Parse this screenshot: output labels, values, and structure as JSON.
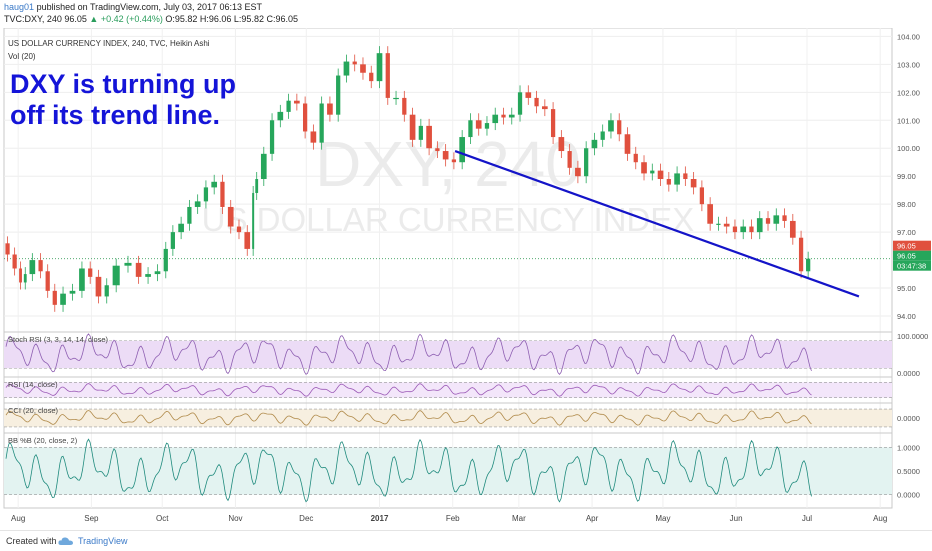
{
  "header": {
    "author": "haug01",
    "published": "published on TradingView.com, July 03, 2017 06:13 EST",
    "ticker_line_prefix": "TVC:DXY, 240  96.05",
    "change": "▲ +0.42 (+0.44%)",
    "ohlc": "O:95.82  H:96.06  L:95.82  C:96.05"
  },
  "chart_data": {
    "type": "line",
    "title": "US DOLLAR CURRENCY INDEX, 240, TVC, Heikin Ashi",
    "volume_label": "Vol (20)",
    "annotation": [
      "DXY is turning up",
      "off its trend line."
    ],
    "watermark": {
      "symbol": "DXY, 240",
      "name": "US DOLLAR CURRENCY INDEX"
    },
    "ylim": [
      93.5,
      104.3
    ],
    "y_ticks": [
      "104.00",
      "103.00",
      "102.00",
      "101.00",
      "100.00",
      "99.00",
      "98.00",
      "97.00",
      "95.00",
      "94.00"
    ],
    "x_ticks": [
      "Aug",
      "Sep",
      "Oct",
      "Nov",
      "Dec",
      "2017",
      "Feb",
      "Mar",
      "Apr",
      "May",
      "Jun",
      "Jul",
      "Aug"
    ],
    "price_series": {
      "name": "DXY",
      "x": [
        "2016-07-26",
        "2016-07-29",
        "2016-08-01",
        "2016-08-03",
        "2016-08-05",
        "2016-08-09",
        "2016-08-12",
        "2016-08-15",
        "2016-08-18",
        "2016-08-22",
        "2016-08-26",
        "2016-08-30",
        "2016-09-02",
        "2016-09-06",
        "2016-09-09",
        "2016-09-14",
        "2016-09-19",
        "2016-09-23",
        "2016-09-27",
        "2016-10-01",
        "2016-10-04",
        "2016-10-07",
        "2016-10-11",
        "2016-10-14",
        "2016-10-18",
        "2016-10-21",
        "2016-10-25",
        "2016-10-28",
        "2016-11-01",
        "2016-11-04",
        "2016-11-08",
        "2016-11-09",
        "2016-11-11",
        "2016-11-15",
        "2016-11-18",
        "2016-11-22",
        "2016-11-25",
        "2016-11-29",
        "2016-12-02",
        "2016-12-06",
        "2016-12-09",
        "2016-12-13",
        "2016-12-16",
        "2016-12-20",
        "2016-12-23",
        "2016-12-27",
        "2016-12-30",
        "2017-01-03",
        "2017-01-06",
        "2017-01-10",
        "2017-01-13",
        "2017-01-17",
        "2017-01-20",
        "2017-01-24",
        "2017-01-27",
        "2017-01-31",
        "2017-02-03",
        "2017-02-07",
        "2017-02-10",
        "2017-02-14",
        "2017-02-17",
        "2017-02-21",
        "2017-02-24",
        "2017-02-28",
        "2017-03-03",
        "2017-03-07",
        "2017-03-10",
        "2017-03-14",
        "2017-03-17",
        "2017-03-21",
        "2017-03-24",
        "2017-03-28",
        "2017-03-31",
        "2017-04-04",
        "2017-04-07",
        "2017-04-11",
        "2017-04-14",
        "2017-04-18",
        "2017-04-21",
        "2017-04-25",
        "2017-04-28",
        "2017-05-02",
        "2017-05-05",
        "2017-05-09",
        "2017-05-12",
        "2017-05-16",
        "2017-05-19",
        "2017-05-23",
        "2017-05-26",
        "2017-05-30",
        "2017-06-02",
        "2017-06-06",
        "2017-06-09",
        "2017-06-13",
        "2017-06-16",
        "2017-06-20",
        "2017-06-23",
        "2017-06-27",
        "2017-06-30",
        "2017-07-03"
      ],
      "y": [
        96.6,
        96.2,
        95.7,
        95.2,
        95.5,
        96.0,
        95.6,
        94.9,
        94.4,
        94.8,
        94.9,
        95.7,
        95.4,
        94.7,
        95.1,
        95.8,
        95.9,
        95.4,
        95.5,
        95.6,
        96.4,
        97.0,
        97.3,
        97.9,
        98.1,
        98.6,
        98.8,
        97.9,
        97.2,
        97.0,
        96.4,
        98.4,
        98.9,
        99.8,
        101.0,
        101.3,
        101.7,
        101.6,
        100.6,
        100.2,
        101.6,
        101.2,
        102.6,
        103.1,
        103.0,
        102.7,
        102.4,
        103.4,
        101.8,
        101.8,
        101.2,
        100.3,
        100.8,
        100.0,
        99.9,
        99.6,
        99.5,
        100.4,
        101.0,
        100.7,
        100.9,
        101.2,
        101.1,
        101.2,
        102.0,
        101.8,
        101.5,
        101.4,
        100.4,
        99.9,
        99.3,
        99.0,
        100.0,
        100.3,
        100.6,
        101.0,
        100.5,
        99.8,
        99.5,
        99.1,
        99.2,
        98.9,
        98.7,
        99.1,
        98.9,
        98.6,
        98.0,
        97.3,
        97.3,
        97.2,
        97.0,
        97.2,
        97.0,
        97.5,
        97.3,
        97.6,
        97.4,
        96.8,
        95.6,
        96.05
      ]
    },
    "trend_line": {
      "x": [
        "2017-02-02",
        "2017-07-23"
      ],
      "y": [
        99.9,
        94.7
      ]
    },
    "last_price": "96.05",
    "price_labels": [
      "96.05",
      "96.05",
      "03:47:38"
    ],
    "panels": [
      {
        "label": "Stoch RSI (3, 3, 14, 14, close)",
        "ticks": [
          "100.0000",
          "0.0000"
        ],
        "color": "#8e5fb2",
        "fill": "#ecdcf6"
      },
      {
        "label": "RSI (14, close)",
        "ticks": [],
        "color": "#9b59b6",
        "fill": "#f3e6fa"
      },
      {
        "label": "CCI (20, close)",
        "ticks": [
          "0.0000"
        ],
        "color": "#b08a4a",
        "fill": "#f7efe0"
      },
      {
        "label": "BB %B (20, close, 2)",
        "ticks": [
          "1.0000",
          "0.5000",
          "0.0000"
        ],
        "color": "#1f8a7d",
        "fill": "#e3f3f1"
      }
    ]
  },
  "footer": {
    "created": "Created with",
    "brand": "TradingView"
  }
}
